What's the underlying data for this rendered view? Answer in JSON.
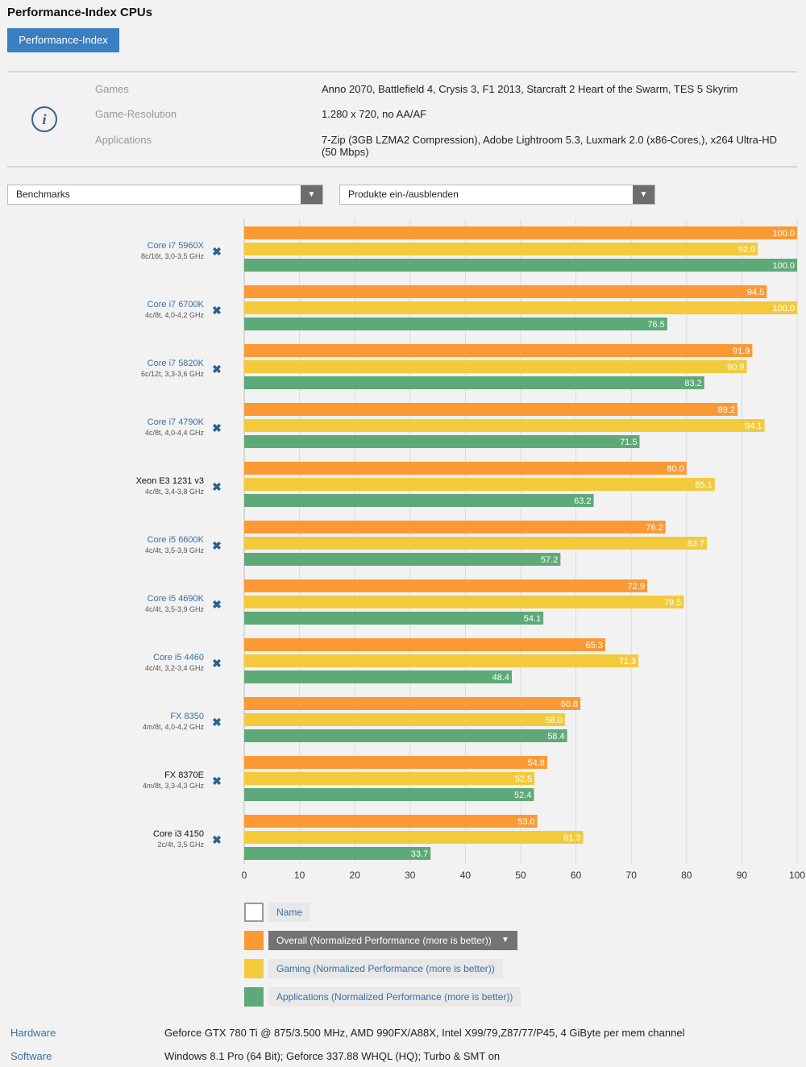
{
  "page": {
    "title": "Performance-Index CPUs",
    "tab_label": "Performance-Index"
  },
  "info": {
    "rows": [
      {
        "label": "Games",
        "value": "Anno 2070, Battlefield 4, Crysis 3, F1 2013, Starcraft 2 Heart of the Swarm, TES 5 Skyrim"
      },
      {
        "label": "Game-Resolution",
        "value": "1.280 x 720, no AA/AF"
      },
      {
        "label": "Applications",
        "value": "7-Zip (3GB LZMA2 Compression), Adobe Lightroom 5.3, Luxmark 2.0 (x86-Cores,), x264 Ultra-HD (50 Mbps)"
      }
    ],
    "icon": "info-icon"
  },
  "controls": {
    "benchmarks_label": "Benchmarks",
    "products_label": "Produkte ein-/ausblenden"
  },
  "colors": {
    "overall": "#fb9935",
    "gaming": "#f4ca3d",
    "applications": "#5ea978",
    "link": "#3a6fa0"
  },
  "chart_data": {
    "type": "bar",
    "orientation": "horizontal",
    "categories": [
      "Core i7 5960X",
      "Core i7 6700K",
      "Core i7 5820K",
      "Core i7 4790K",
      "Xeon E3 1231 v3",
      "Core i5 6600K",
      "Core i5 4690K",
      "Core i5 4460",
      "FX 8350",
      "FX 8370E",
      "Core i3 4150"
    ],
    "subtitles": [
      "8c/16t, 3,0-3,5 GHz",
      "4c/8t, 4,0-4,2 GHz",
      "6c/12t, 3,3-3,6 GHz",
      "4c/8t, 4,0-4,4 GHz",
      "4c/8t, 3,4-3,8 GHz",
      "4c/4t, 3,5-3,9 GHz",
      "4c/4t, 3,5-3,9 GHz",
      "4c/4t, 3,2-3,4 GHz",
      "4m/8t, 4,0-4,2 GHz",
      "4m/8t, 3,3-4,3 GHz",
      "2c/4t, 3,5 GHz"
    ],
    "linked": [
      true,
      true,
      true,
      true,
      false,
      true,
      true,
      true,
      true,
      false,
      false
    ],
    "series": [
      {
        "name": "Overall (Normalized Performance (more is better))",
        "color": "#fb9935",
        "values": [
          100.0,
          94.5,
          91.9,
          89.2,
          80.0,
          76.2,
          72.9,
          65.3,
          60.8,
          54.8,
          53.0
        ],
        "labels": [
          "100.0",
          "94.5",
          "91.9",
          "89.2",
          "80.0",
          "76.2",
          "72.9",
          "65.3",
          "60.8",
          "54.8",
          "53.0"
        ]
      },
      {
        "name": "Gaming (Normalized Performance (more is better))",
        "color": "#f4ca3d",
        "values": [
          92.9,
          100.0,
          90.9,
          94.1,
          85.1,
          83.7,
          79.5,
          71.3,
          58.0,
          52.5,
          61.3
        ],
        "labels": [
          "92.9",
          "100.0",
          "90.9",
          "94.1",
          "85.1",
          "83.7",
          "79.5",
          "71.3",
          "58.0",
          "52.5",
          "61.3"
        ]
      },
      {
        "name": "Applications (Normalized Performance (more is better))",
        "color": "#5ea978",
        "values": [
          100.0,
          76.5,
          83.2,
          71.5,
          63.2,
          57.2,
          54.1,
          48.4,
          58.4,
          52.4,
          33.7
        ],
        "labels": [
          "100.0",
          "76.5",
          "83.2",
          "71.5",
          "63.2",
          "57.2",
          "54.1",
          "48.4",
          "58.4",
          "52.4",
          "33.7"
        ]
      }
    ],
    "x_ticks": [
      "0",
      "10",
      "20",
      "30",
      "40",
      "50",
      "60",
      "70",
      "80",
      "90",
      "100"
    ],
    "xlim": [
      0,
      100
    ],
    "grid": true,
    "remove_symbol": "✖"
  },
  "legend": {
    "name_label": "Name",
    "overall_label": "Overall (Normalized Performance (more is better))",
    "gaming_label": "Gaming (Normalized Performance (more is better))",
    "applications_label": "Applications (Normalized Performance (more is better))",
    "dropdown_symbol": "▼"
  },
  "footer": {
    "hardware_label": "Hardware",
    "hardware_value": "Geforce GTX 780 Ti @ 875/3.500 MHz, AMD 990FX/A88X, Intel X99/79,Z87/77/P45, 4 GiByte per mem channel",
    "software_label": "Software",
    "software_value": "Windows 8.1 Pro (64 Bit); Geforce 337.88 WHQL (HQ); Turbo & SMT on"
  }
}
